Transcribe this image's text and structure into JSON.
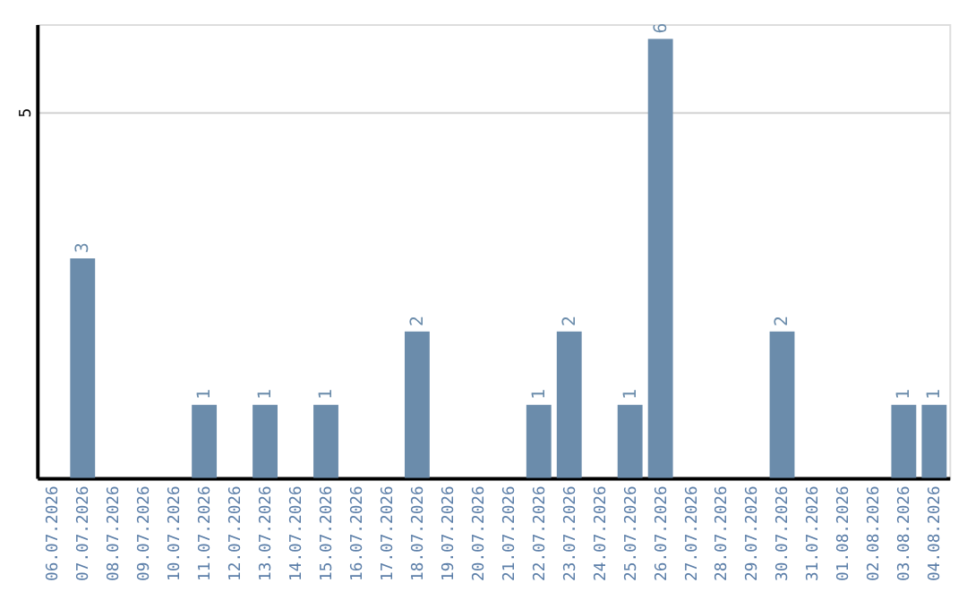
{
  "chart_data": {
    "type": "bar",
    "categories": [
      "06.07.2026",
      "07.07.2026",
      "08.07.2026",
      "09.07.2026",
      "10.07.2026",
      "11.07.2026",
      "12.07.2026",
      "13.07.2026",
      "14.07.2026",
      "15.07.2026",
      "16.07.2026",
      "17.07.2026",
      "18.07.2026",
      "19.07.2026",
      "20.07.2026",
      "21.07.2026",
      "22.07.2026",
      "23.07.2026",
      "24.07.2026",
      "25.07.2026",
      "26.07.2026",
      "27.07.2026",
      "28.07.2026",
      "29.07.2026",
      "30.07.2026",
      "31.07.2026",
      "01.08.2026",
      "02.08.2026",
      "03.08.2026",
      "04.08.2026"
    ],
    "values": [
      0,
      3,
      0,
      0,
      0,
      1,
      0,
      1,
      0,
      1,
      0,
      0,
      2,
      0,
      0,
      0,
      1,
      2,
      0,
      1,
      6,
      0,
      0,
      0,
      2,
      0,
      0,
      0,
      1,
      1
    ],
    "value_labels": [
      null,
      "3",
      null,
      null,
      null,
      "1",
      null,
      "1",
      null,
      "1",
      null,
      null,
      "2",
      null,
      null,
      null,
      "1",
      "2",
      null,
      "1",
      "6",
      null,
      null,
      null,
      "2",
      null,
      null,
      null,
      "1",
      "1"
    ],
    "color": "#6b8cab",
    "ylim": [
      0,
      6.2
    ],
    "yticks": [
      5
    ],
    "grid": "y"
  }
}
